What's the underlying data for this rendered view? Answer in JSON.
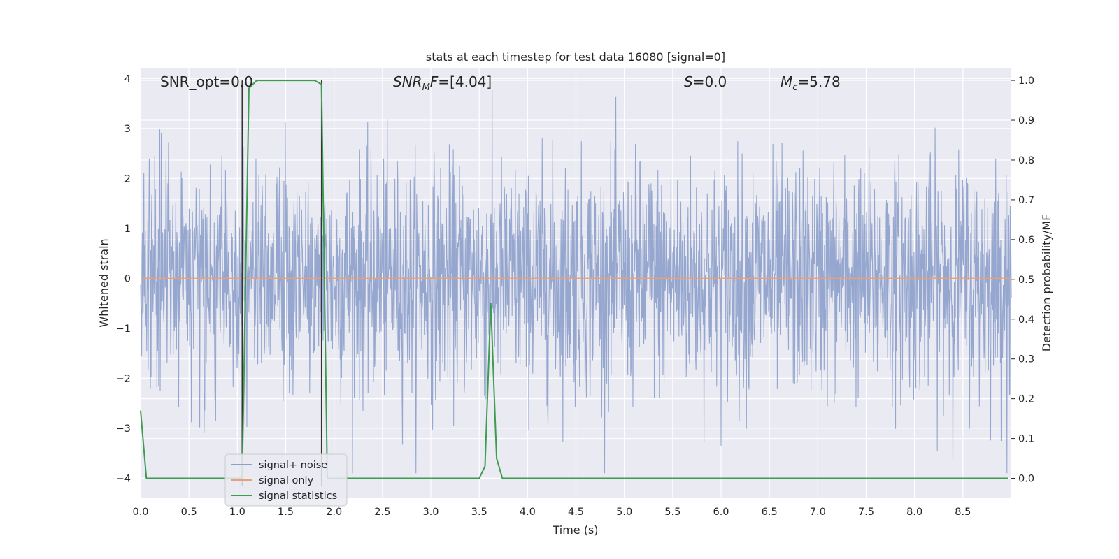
{
  "chart_data": {
    "type": "line",
    "title": "stats at each timestep for test data 16080 [signal=0]",
    "xlabel": "Time (s)",
    "ylabel_left": "Whitened strain",
    "ylabel_right": "Detection probability/MF",
    "xlim": [
      0.0,
      9.0
    ],
    "ylim_left": [
      -4.4,
      4.2
    ],
    "ylim_right": [
      -0.05,
      1.03
    ],
    "x_ticks": [
      "0.0",
      "0.5",
      "1.0",
      "1.5",
      "2.0",
      "2.5",
      "3.0",
      "3.5",
      "4.0",
      "4.5",
      "5.0",
      "5.5",
      "6.0",
      "6.5",
      "7.0",
      "7.5",
      "8.0",
      "8.5"
    ],
    "y_ticks_left": [
      "−4",
      "−3",
      "−2",
      "−1",
      "0",
      "1",
      "2",
      "3",
      "4"
    ],
    "y_ticks_right": [
      "0.0",
      "0.1",
      "0.2",
      "0.3",
      "0.4",
      "0.5",
      "0.6",
      "0.7",
      "0.8",
      "0.9",
      "1.0"
    ],
    "grid": true,
    "legend_position": "lower-left",
    "annotations": {
      "snr_opt": "SNR_opt=0.0",
      "snr_mf_main": "SNR",
      "snr_mf_sub": "M",
      "snr_mf_rest": "F=[4.04]",
      "s_var": "S",
      "s_rest": "=0.0",
      "mc_main": "M",
      "mc_sub": "c",
      "mc_rest": "=5.78"
    },
    "series": [
      {
        "name": "signal+ noise",
        "color": "#8da0cb",
        "axis": "left",
        "description_stats": {
          "x_start": 0.0,
          "x_end": 9.0,
          "approx_amplitude_range": [
            -3.9,
            3.8
          ]
        }
      },
      {
        "name": "signal only",
        "color": "#e8a07a",
        "axis": "left",
        "x": [
          0.0,
          9.0
        ],
        "y": [
          0.0,
          0.0
        ]
      },
      {
        "name": "signal statistics",
        "color": "#3e9b4f",
        "axis": "right",
        "x": [
          0.0,
          0.06,
          0.12,
          1.05,
          1.12,
          1.2,
          1.8,
          1.87,
          1.93,
          3.5,
          3.56,
          3.62,
          3.68,
          3.74,
          8.97
        ],
        "y": [
          0.17,
          0.0,
          0.0,
          0.0,
          0.98,
          1.0,
          1.0,
          0.99,
          0.0,
          0.0,
          0.03,
          0.44,
          0.05,
          0.0,
          0.0
        ]
      },
      {
        "name": "",
        "color": "#333333",
        "axis": "right",
        "kind": "vertical-marker",
        "x": [
          1.05,
          1.87
        ]
      }
    ]
  }
}
